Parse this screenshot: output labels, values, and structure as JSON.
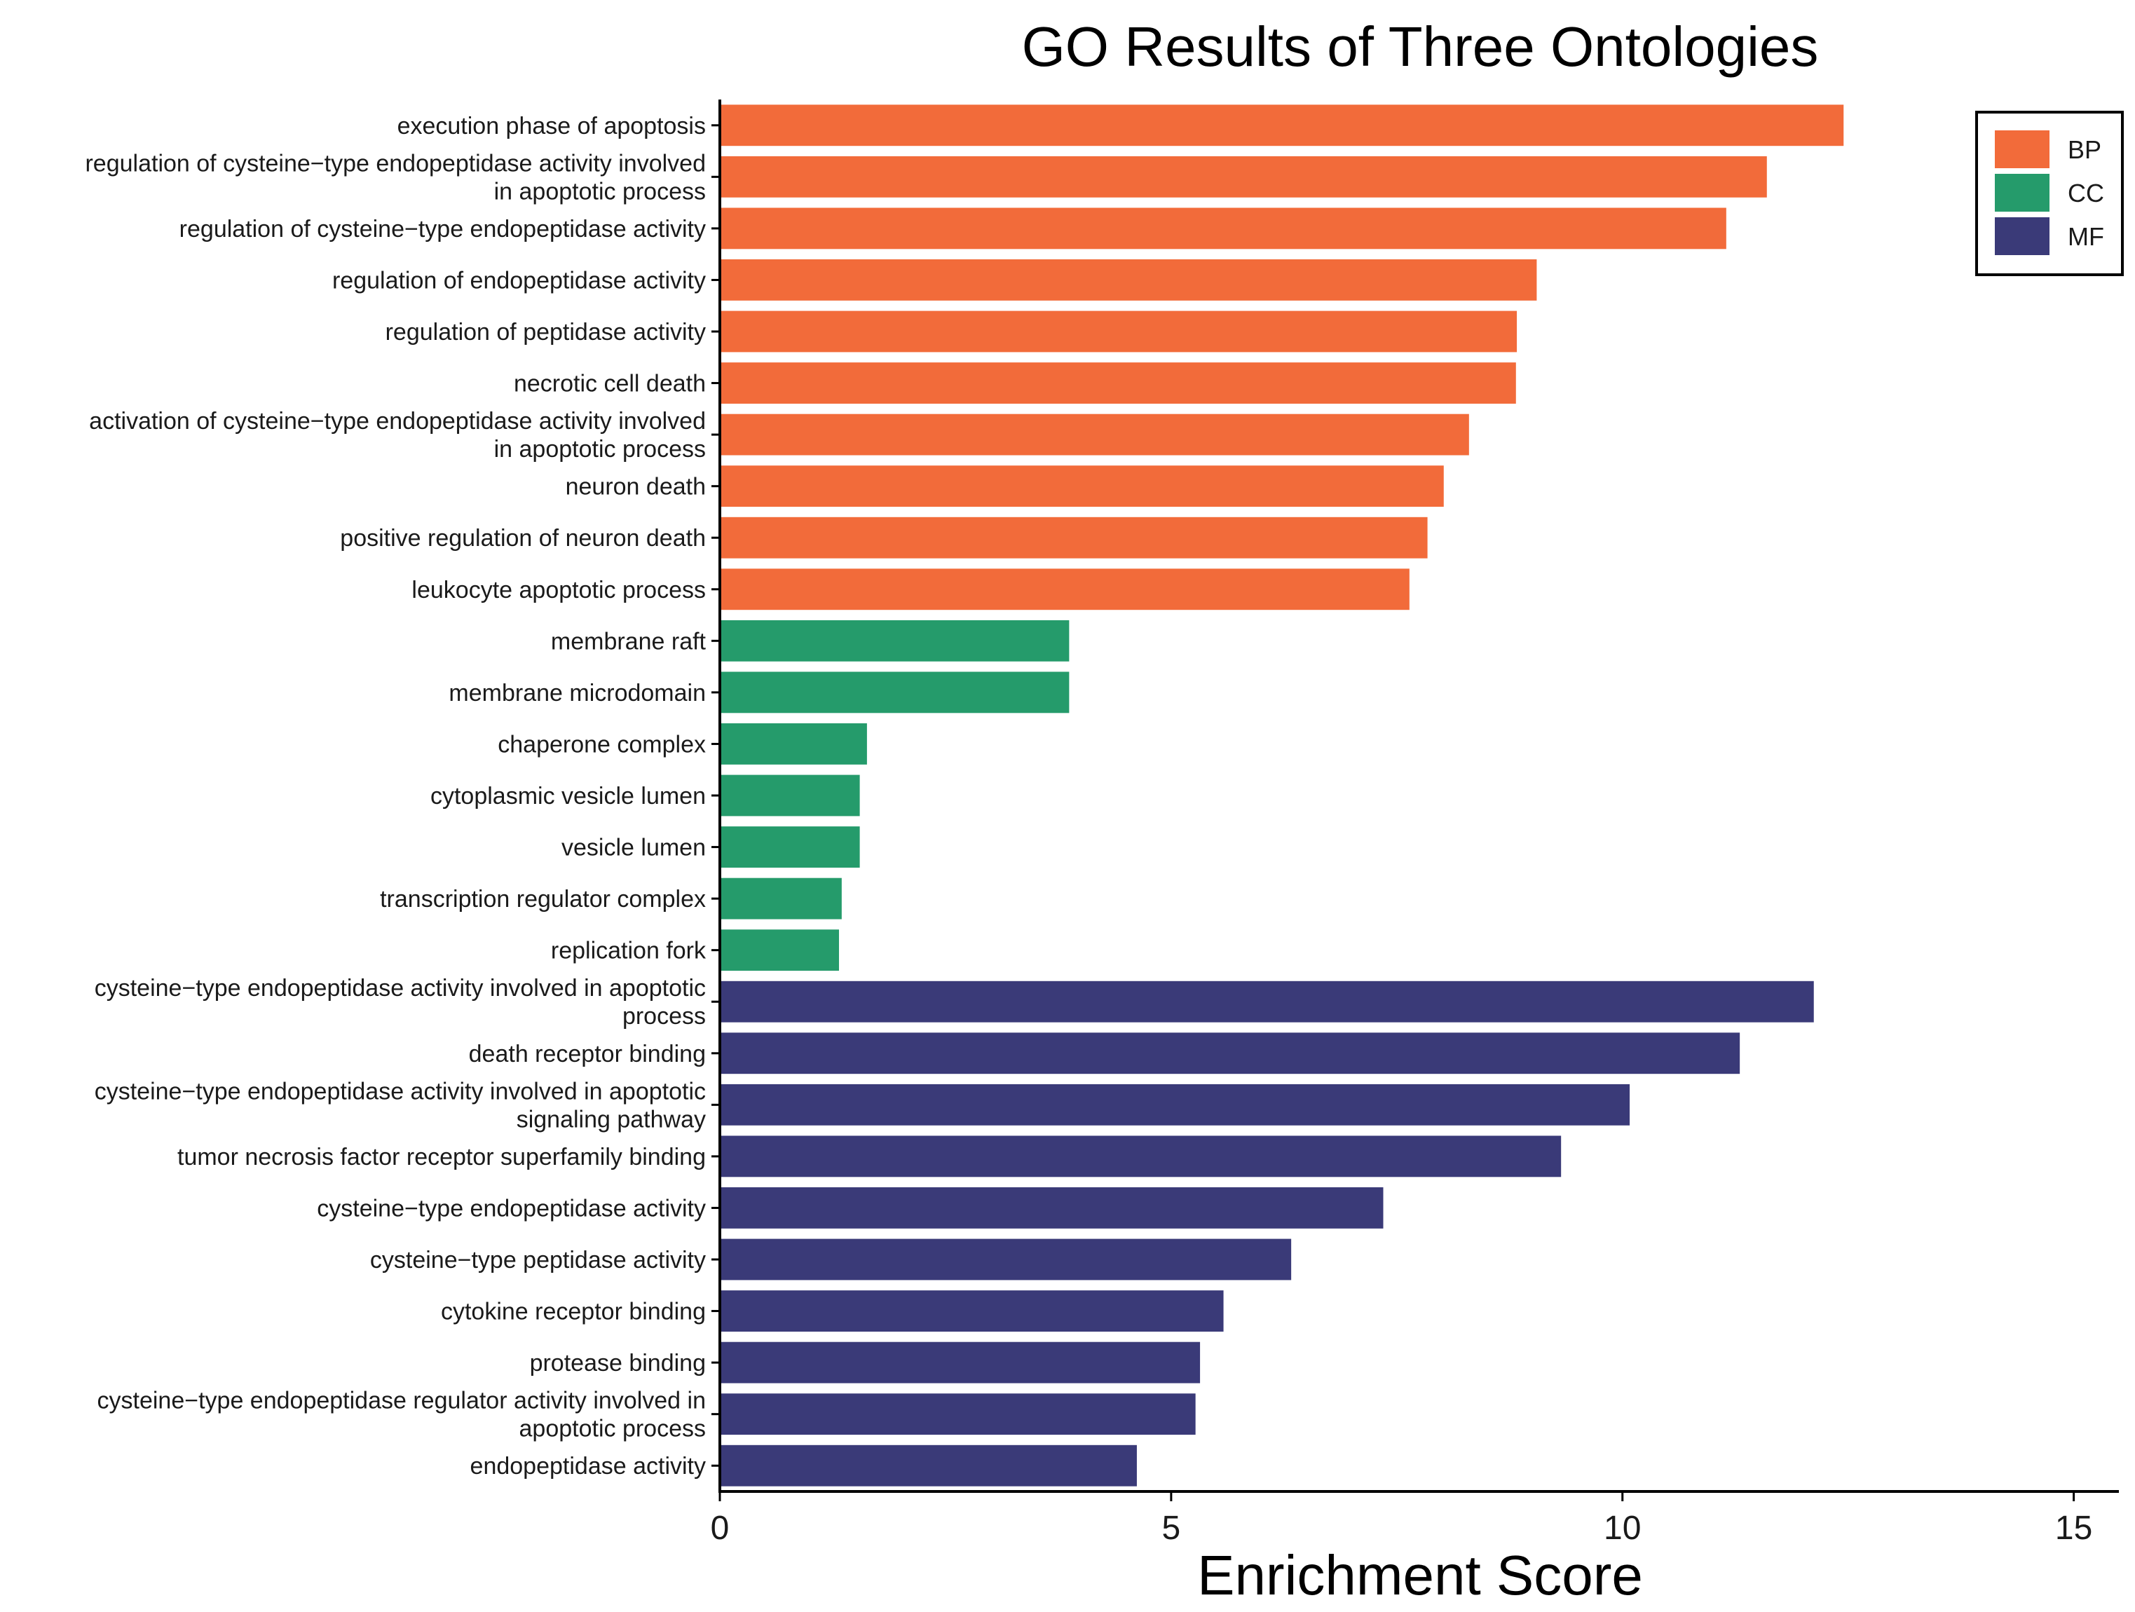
{
  "chart_data": {
    "type": "bar",
    "orientation": "horizontal",
    "title": "GO Results of Three Ontologies",
    "xlabel": "Enrichment Score",
    "ylabel": "",
    "xlim": [
      0,
      15.5
    ],
    "x_ticks": [
      0,
      5,
      10,
      15
    ],
    "grid": false,
    "legend_position": "top-right",
    "series": [
      {
        "name": "BP",
        "color": "#F26B3A"
      },
      {
        "name": "CC",
        "color": "#259B6B"
      },
      {
        "name": "MF",
        "color": "#3A3A78"
      }
    ],
    "bars": [
      {
        "label": [
          "execution phase of apoptosis"
        ],
        "value": 12.45,
        "series": "BP"
      },
      {
        "label": [
          "regulation of cysteine−type endopeptidase activity involved",
          "in apoptotic process"
        ],
        "value": 11.6,
        "series": "BP"
      },
      {
        "label": [
          "regulation of cysteine−type endopeptidase activity"
        ],
        "value": 11.15,
        "series": "BP"
      },
      {
        "label": [
          "regulation of endopeptidase activity"
        ],
        "value": 9.05,
        "series": "BP"
      },
      {
        "label": [
          "regulation of peptidase activity"
        ],
        "value": 8.83,
        "series": "BP"
      },
      {
        "label": [
          "necrotic cell death"
        ],
        "value": 8.82,
        "series": "BP"
      },
      {
        "label": [
          "activation of cysteine−type endopeptidase activity involved",
          "in apoptotic process"
        ],
        "value": 8.3,
        "series": "BP"
      },
      {
        "label": [
          "neuron death"
        ],
        "value": 8.02,
        "series": "BP"
      },
      {
        "label": [
          "positive regulation of neuron death"
        ],
        "value": 7.84,
        "series": "BP"
      },
      {
        "label": [
          "leukocyte apoptotic process"
        ],
        "value": 7.64,
        "series": "BP"
      },
      {
        "label": [
          "membrane raft"
        ],
        "value": 3.87,
        "series": "CC"
      },
      {
        "label": [
          "membrane microdomain"
        ],
        "value": 3.87,
        "series": "CC"
      },
      {
        "label": [
          "chaperone complex"
        ],
        "value": 1.63,
        "series": "CC"
      },
      {
        "label": [
          "cytoplasmic vesicle lumen"
        ],
        "value": 1.55,
        "series": "CC"
      },
      {
        "label": [
          "vesicle lumen"
        ],
        "value": 1.55,
        "series": "CC"
      },
      {
        "label": [
          "transcription regulator complex"
        ],
        "value": 1.35,
        "series": "CC"
      },
      {
        "label": [
          "replication fork"
        ],
        "value": 1.32,
        "series": "CC"
      },
      {
        "label": [
          "cysteine−type endopeptidase activity involved in apoptotic",
          "process"
        ],
        "value": 12.12,
        "series": "MF"
      },
      {
        "label": [
          "death receptor binding"
        ],
        "value": 11.3,
        "series": "MF"
      },
      {
        "label": [
          "cysteine−type endopeptidase activity involved in apoptotic",
          "signaling pathway"
        ],
        "value": 10.08,
        "series": "MF"
      },
      {
        "label": [
          "tumor necrosis factor receptor superfamily binding"
        ],
        "value": 9.32,
        "series": "MF"
      },
      {
        "label": [
          "cysteine−type endopeptidase activity"
        ],
        "value": 7.35,
        "series": "MF"
      },
      {
        "label": [
          "cysteine−type peptidase activity"
        ],
        "value": 6.33,
        "series": "MF"
      },
      {
        "label": [
          "cytokine receptor binding"
        ],
        "value": 5.58,
        "series": "MF"
      },
      {
        "label": [
          "protease binding"
        ],
        "value": 5.32,
        "series": "MF"
      },
      {
        "label": [
          "cysteine−type endopeptidase regulator activity involved in",
          "apoptotic process"
        ],
        "value": 5.27,
        "series": "MF"
      },
      {
        "label": [
          "endopeptidase activity"
        ],
        "value": 4.62,
        "series": "MF"
      }
    ]
  }
}
